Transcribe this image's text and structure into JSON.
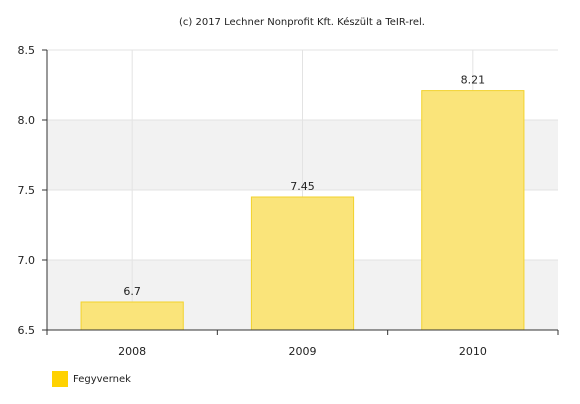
{
  "credit": "(c) 2017 Lechner Nonprofit Kft. Készült a TeIR-rel.",
  "colors": {
    "bar_fill": "#FAE47A",
    "bar_stroke": "#F2D22C",
    "legend_swatch": "#FFD200",
    "band": "#F2F2F2",
    "grid": "#E3E3E3",
    "axis": "#333333"
  },
  "chart_data": {
    "type": "bar",
    "categories": [
      "2008",
      "2009",
      "2010"
    ],
    "series": [
      {
        "name": "Fegyvernek",
        "values": [
          6.7,
          7.45,
          8.21
        ],
        "labels": [
          "6.7",
          "7.45",
          "8.21"
        ]
      }
    ],
    "ylim": [
      6.5,
      8.5
    ],
    "yticks": [
      6.5,
      7.0,
      7.5,
      8.0,
      8.5
    ],
    "ytick_labels": [
      "6.5",
      "7.0",
      "7.5",
      "8.0",
      "8.5"
    ],
    "grid": true,
    "alternating_bands": true,
    "legend_position": "bottom-left",
    "title": "",
    "xlabel": "",
    "ylabel": ""
  }
}
